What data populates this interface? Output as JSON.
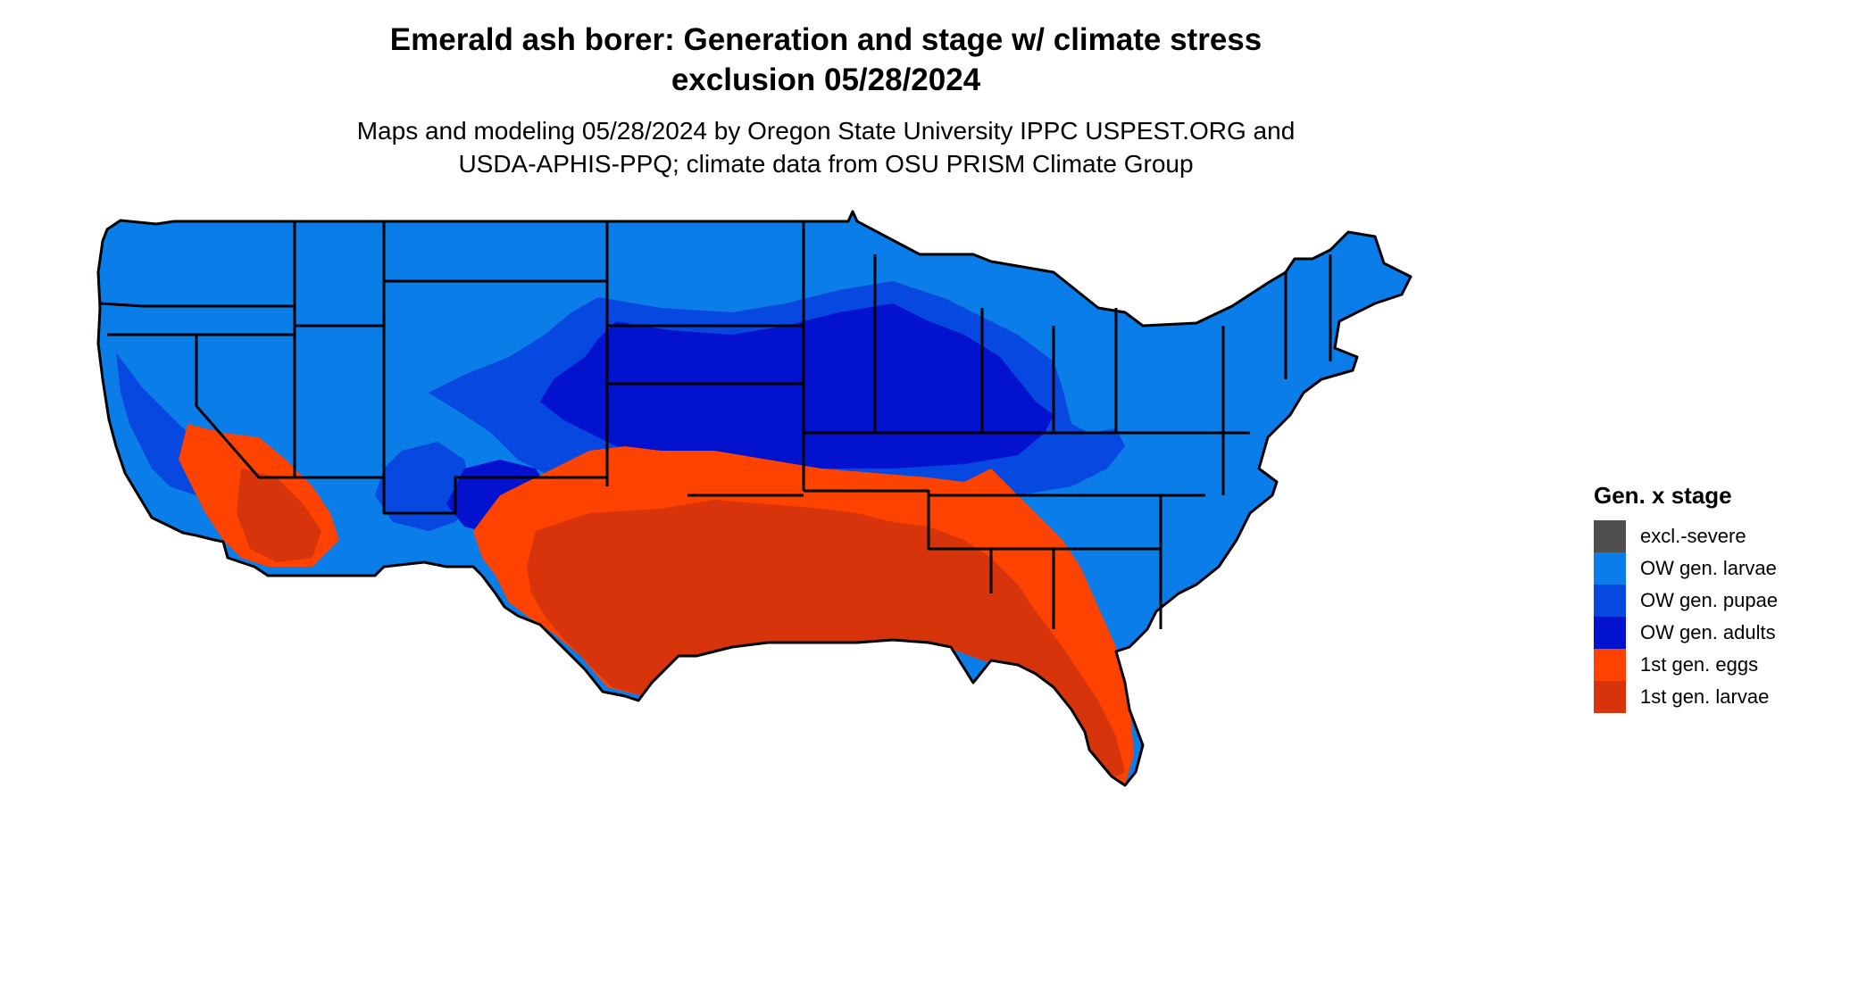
{
  "map": {
    "title_lines": [
      "Emerald ash borer: Generation and stage w/ climate stress",
      "exclusion 05/28/2024"
    ],
    "subtitle_lines": [
      "Maps and modeling 05/28/2024 by Oregon State University IPPC USPEST.ORG and",
      "USDA-APHIS-PPQ; climate data from OSU PRISM Climate Group"
    ],
    "region_shown": "contiguous United States with state boundaries",
    "legend": {
      "title": "Gen. x stage",
      "items": [
        {
          "label": "excl.-severe",
          "color": "#4f4f4f"
        },
        {
          "label": "OW gen. larvae",
          "color": "#0a7de8"
        },
        {
          "label": "OW gen. pupae",
          "color": "#0748e0"
        },
        {
          "label": "OW gen. adults",
          "color": "#0312cf"
        },
        {
          "label": "1st gen. eggs",
          "color": "#fe4200"
        },
        {
          "label": "1st gen. larvae",
          "color": "#d8340c"
        }
      ]
    }
  }
}
